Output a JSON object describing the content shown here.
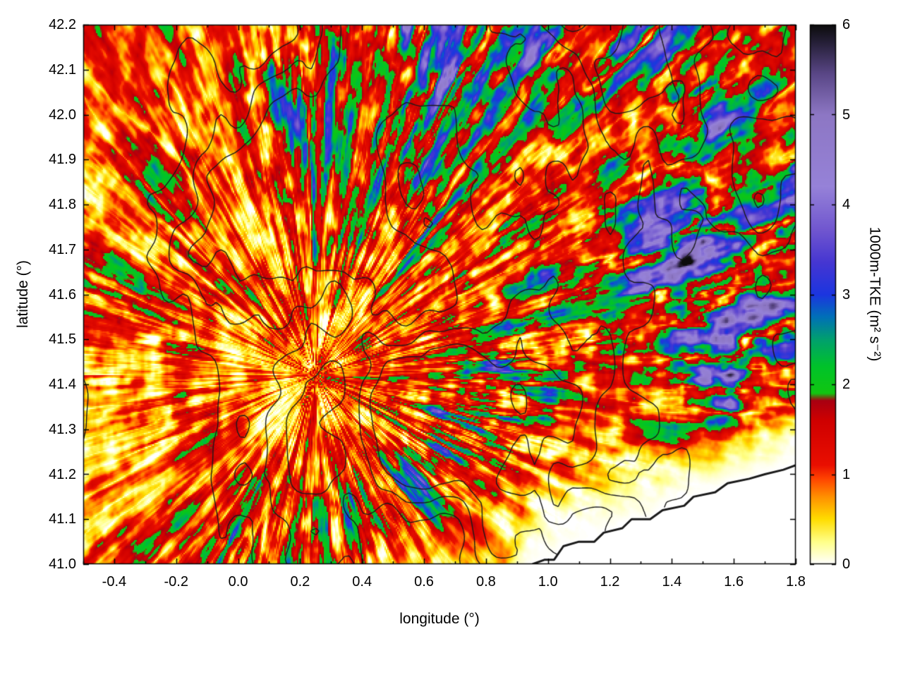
{
  "chart_data": {
    "type": "heatmap",
    "title": "",
    "xlabel": "longitude (°)",
    "ylabel": "latitude (°)",
    "xlim": [
      -0.5,
      1.8
    ],
    "ylim": [
      41.0,
      42.2
    ],
    "grid_lines": false,
    "x_minor_step": 0.1,
    "x_ticks": [
      {
        "value": -0.4,
        "label": "-0.4"
      },
      {
        "value": -0.2,
        "label": "-0.2"
      },
      {
        "value": 0.0,
        "label": "0.0"
      },
      {
        "value": 0.2,
        "label": "0.2"
      },
      {
        "value": 0.4,
        "label": "0.4"
      },
      {
        "value": 0.6,
        "label": "0.6"
      },
      {
        "value": 0.8,
        "label": "0.8"
      },
      {
        "value": 1.0,
        "label": "1.0"
      },
      {
        "value": 1.2,
        "label": "1.2"
      },
      {
        "value": 1.4,
        "label": "1.4"
      },
      {
        "value": 1.6,
        "label": "1.6"
      },
      {
        "value": 1.8,
        "label": "1.8"
      }
    ],
    "y_ticks": [
      {
        "value": 41.0,
        "label": "41.0"
      },
      {
        "value": 41.1,
        "label": "41.1"
      },
      {
        "value": 41.2,
        "label": "41.2"
      },
      {
        "value": 41.3,
        "label": "41.3"
      },
      {
        "value": 41.4,
        "label": "41.4"
      },
      {
        "value": 41.5,
        "label": "41.5"
      },
      {
        "value": 41.6,
        "label": "41.6"
      },
      {
        "value": 41.7,
        "label": "41.7"
      },
      {
        "value": 41.8,
        "label": "41.8"
      },
      {
        "value": 41.9,
        "label": "41.9"
      },
      {
        "value": 42.0,
        "label": "42.0"
      },
      {
        "value": 42.1,
        "label": "42.1"
      },
      {
        "value": 42.2,
        "label": "42.2"
      }
    ],
    "colorbar": {
      "label": "1000m-TKE (m² s⁻²)",
      "range": [
        0,
        6
      ],
      "ticks": [
        {
          "value": 0,
          "label": "0"
        },
        {
          "value": 1,
          "label": "1"
        },
        {
          "value": 2,
          "label": "2"
        },
        {
          "value": 3,
          "label": "3"
        },
        {
          "value": 4,
          "label": "4"
        },
        {
          "value": 5,
          "label": "5"
        },
        {
          "value": 6,
          "label": "6"
        }
      ],
      "palette": [
        {
          "v": 0.0,
          "c": "#ffffff"
        },
        {
          "v": 0.25,
          "c": "#ffff88"
        },
        {
          "v": 0.5,
          "c": "#ffdd00"
        },
        {
          "v": 0.75,
          "c": "#ff9000"
        },
        {
          "v": 0.95,
          "c": "#ff4400"
        },
        {
          "v": 1.1,
          "c": "#ea0f00"
        },
        {
          "v": 1.6,
          "c": "#cf0000"
        },
        {
          "v": 1.82,
          "c": "#a80012"
        },
        {
          "v": 1.9,
          "c": "#11c611"
        },
        {
          "v": 2.2,
          "c": "#00c32a"
        },
        {
          "v": 2.5,
          "c": "#00a06e"
        },
        {
          "v": 2.75,
          "c": "#0070b8"
        },
        {
          "v": 3.0,
          "c": "#1c35e0"
        },
        {
          "v": 3.35,
          "c": "#4536d2"
        },
        {
          "v": 3.7,
          "c": "#6f55cf"
        },
        {
          "v": 4.2,
          "c": "#9682d8"
        },
        {
          "v": 5.0,
          "c": "#8d77c4"
        },
        {
          "v": 5.45,
          "c": "#5a4787"
        },
        {
          "v": 5.8,
          "c": "#262038"
        },
        {
          "v": 6.0,
          "c": "#0c0c0c"
        }
      ]
    },
    "grid": {
      "comment_units": "approximate mean 1000m-TKE (m2 s-2), rows north (42.2) to south (41.0), cols -0.5 to 1.8 step 0.1",
      "x0": -0.5,
      "x1": 1.8,
      "y0": 41.0,
      "y1": 42.2,
      "ncols": 24,
      "nrows": 13,
      "values": [
        [
          1.3,
          1.2,
          1.4,
          1.2,
          1.3,
          1.5,
          2.0,
          2.6,
          2.8,
          2.3,
          2.6,
          3.1,
          2.9,
          2.6,
          2.9,
          3.2,
          2.4,
          1.9,
          2.3,
          2.7,
          2.1,
          1.7,
          2.5,
          1.5
        ],
        [
          1.2,
          1.3,
          1.2,
          1.4,
          1.2,
          1.6,
          2.4,
          2.9,
          2.3,
          1.9,
          2.5,
          3.3,
          3.5,
          2.8,
          2.2,
          2.6,
          2.1,
          2.4,
          2.8,
          3.0,
          2.3,
          2.7,
          3.0,
          1.9
        ],
        [
          1.3,
          1.2,
          1.4,
          1.3,
          1.5,
          1.4,
          1.9,
          2.3,
          1.8,
          1.7,
          2.7,
          3.1,
          2.6,
          2.2,
          1.9,
          2.2,
          2.6,
          2.1,
          1.7,
          2.2,
          2.8,
          3.1,
          2.1,
          1.6
        ],
        [
          1.2,
          1.4,
          1.3,
          1.2,
          1.4,
          1.6,
          1.8,
          2.1,
          2.5,
          2.0,
          2.3,
          2.7,
          2.2,
          1.9,
          2.0,
          1.7,
          2.0,
          2.4,
          1.9,
          2.6,
          2.9,
          2.4,
          1.9,
          2.7
        ],
        [
          1.3,
          1.2,
          1.4,
          1.5,
          1.3,
          1.4,
          1.6,
          1.8,
          1.5,
          1.8,
          2.1,
          2.5,
          2.0,
          1.7,
          1.8,
          2.2,
          1.8,
          2.0,
          2.4,
          2.8,
          3.3,
          3.0,
          2.3,
          3.1
        ],
        [
          1.2,
          1.3,
          1.2,
          1.4,
          1.3,
          1.5,
          1.4,
          1.6,
          1.8,
          1.5,
          1.8,
          2.0,
          1.7,
          1.8,
          2.0,
          1.7,
          2.0,
          2.4,
          2.8,
          3.2,
          3.7,
          3.4,
          2.6,
          3.0
        ],
        [
          1.4,
          1.2,
          1.5,
          1.3,
          1.4,
          1.2,
          1.4,
          1.5,
          1.3,
          1.6,
          1.4,
          1.8,
          1.6,
          1.5,
          1.8,
          2.2,
          1.9,
          2.2,
          2.6,
          3.3,
          3.9,
          3.6,
          2.8,
          2.4
        ],
        [
          1.3,
          1.4,
          1.2,
          1.5,
          1.3,
          1.1,
          1.2,
          1.3,
          1.2,
          1.5,
          1.3,
          1.6,
          1.8,
          1.7,
          2.0,
          2.4,
          2.0,
          2.4,
          2.1,
          2.8,
          3.8,
          4.1,
          3.2,
          2.6
        ],
        [
          1.0,
          1.2,
          1.4,
          1.2,
          1.3,
          0.9,
          0.8,
          0.9,
          1.2,
          1.2,
          1.4,
          1.6,
          2.0,
          2.4,
          2.8,
          2.4,
          2.0,
          1.7,
          1.9,
          2.4,
          3.4,
          3.8,
          2.8,
          2.2
        ],
        [
          0.8,
          1.0,
          1.2,
          1.4,
          1.1,
          0.9,
          1.1,
          1.0,
          1.3,
          1.5,
          1.8,
          2.2,
          2.6,
          3.0,
          2.4,
          1.7,
          1.3,
          1.1,
          1.4,
          1.8,
          2.2,
          2.6,
          1.8,
          1.2
        ],
        [
          0.6,
          0.8,
          0.7,
          0.9,
          1.2,
          1.4,
          1.2,
          1.5,
          1.3,
          1.6,
          2.0,
          2.3,
          2.0,
          1.6,
          1.2,
          0.9,
          0.9,
          0.7,
          0.6,
          0.6,
          0.5,
          0.5,
          0.5,
          0.4
        ],
        [
          1.0,
          1.2,
          0.9,
          1.3,
          1.5,
          1.8,
          1.6,
          2.0,
          1.8,
          1.5,
          1.8,
          1.5,
          1.1,
          0.8,
          0.6,
          0.5,
          0.4,
          0.3,
          0.3,
          0.2,
          0.2,
          0.2,
          0.2,
          0.2
        ],
        [
          1.2,
          1.4,
          1.6,
          1.3,
          1.8,
          2.0,
          1.8,
          1.6,
          1.4,
          1.3,
          0.9,
          0.7,
          0.5,
          0.4,
          0.3,
          0.2,
          0.2,
          0.2,
          0.2,
          0.2,
          0.2,
          0.2,
          0.2,
          0.2
        ]
      ]
    },
    "coastline": [
      [
        0.95,
        41.0
      ],
      [
        0.99,
        41.01
      ],
      [
        1.02,
        41.01
      ],
      [
        1.05,
        41.04
      ],
      [
        1.1,
        41.05
      ],
      [
        1.15,
        41.05
      ],
      [
        1.18,
        41.07
      ],
      [
        1.24,
        41.08
      ],
      [
        1.27,
        41.1
      ],
      [
        1.33,
        41.1
      ],
      [
        1.37,
        41.12
      ],
      [
        1.44,
        41.13
      ],
      [
        1.47,
        41.15
      ],
      [
        1.54,
        41.16
      ],
      [
        1.58,
        41.18
      ],
      [
        1.65,
        41.19
      ],
      [
        1.7,
        41.2
      ],
      [
        1.76,
        41.21
      ],
      [
        1.8,
        41.22
      ]
    ],
    "sea_color": "#ffffff",
    "contour_color": "#1a1a1a",
    "frame_color": "#000000"
  }
}
